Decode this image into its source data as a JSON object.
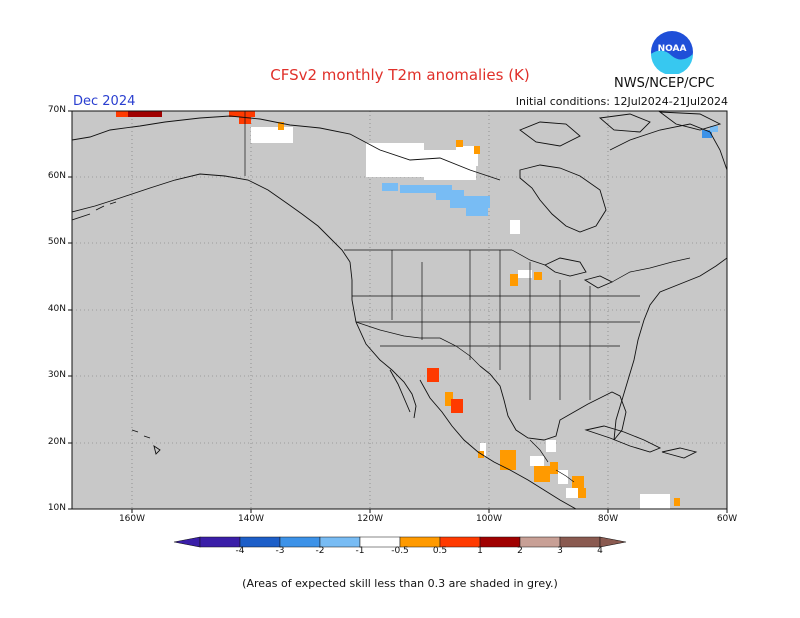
{
  "header": {
    "title": "CFSv2 monthly T2m anomalies (K)",
    "agency": "NWS/NCEP/CPC",
    "logo_text": "NOAA",
    "month": "Dec 2024",
    "initial_conditions": "Initial conditions: 12Jul2024-21Jul2024"
  },
  "map": {
    "lat_labels": [
      "70N",
      "60N",
      "50N",
      "40N",
      "30N",
      "20N",
      "10N"
    ],
    "lon_labels": [
      "160W",
      "140W",
      "120W",
      "100W",
      "80W",
      "60W"
    ],
    "lat_range": [
      10,
      70
    ],
    "lon_range": [
      -170,
      -60
    ],
    "background_color": "#c8c8c8",
    "grid": "dotted"
  },
  "colorbar": {
    "tick_labels": [
      "-4",
      "-3",
      "-2",
      "-1",
      "-0.5",
      "0.5",
      "1",
      "2",
      "3",
      "4"
    ],
    "colors": [
      "#3a1ea8",
      "#1c5ec8",
      "#3c92e8",
      "#78bcf4",
      "#ffffff",
      "#ff9a00",
      "#ff3a00",
      "#a00000",
      "#c8a096",
      "#8a5a50"
    ],
    "below_color": "#3a1ea8",
    "above_color": "#8a5a50"
  },
  "footnote": "(Areas of expected skill less than 0.3 are shaded in grey.)"
}
